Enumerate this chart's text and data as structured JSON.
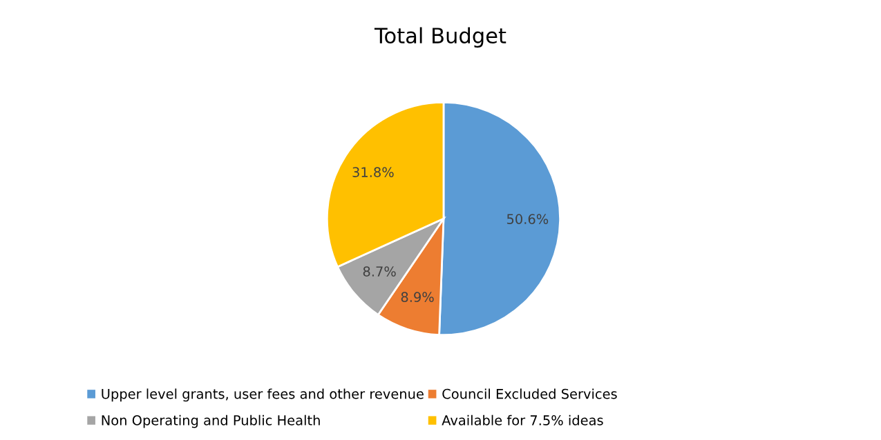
{
  "chart_data": {
    "type": "pie",
    "title": "Total Budget",
    "categories": [
      "Upper level grants, user fees and other revenue",
      "Council Excluded Services",
      "Non Operating and Public Health",
      "Available for 7.5% ideas"
    ],
    "values": [
      50.6,
      8.9,
      8.7,
      31.8
    ],
    "colors": [
      "#5b9bd5",
      "#ed7d31",
      "#a5a5a5",
      "#ffc000"
    ],
    "value_labels": [
      "50.6%",
      "8.9%",
      "8.7%",
      "31.8%"
    ],
    "legend": "bottom"
  }
}
